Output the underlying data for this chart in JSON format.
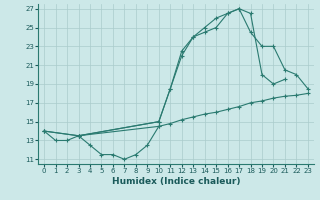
{
  "xlabel": "Humidex (Indice chaleur)",
  "bg_color": "#cce8e8",
  "grid_color": "#aacccc",
  "line_color": "#2a7a70",
  "xlim": [
    -0.5,
    23.5
  ],
  "ylim": [
    10.5,
    27.5
  ],
  "xticks": [
    0,
    1,
    2,
    3,
    4,
    5,
    6,
    7,
    8,
    9,
    10,
    11,
    12,
    13,
    14,
    15,
    16,
    17,
    18,
    19,
    20,
    21,
    22,
    23
  ],
  "yticks": [
    11,
    13,
    15,
    17,
    19,
    21,
    23,
    25,
    27
  ],
  "line1_x": [
    0,
    1,
    2,
    3,
    10,
    11,
    12,
    13,
    14,
    15,
    16,
    17,
    18,
    19,
    20,
    21
  ],
  "line1_y": [
    14,
    13,
    13,
    13.5,
    15,
    18.5,
    22,
    24,
    25.0,
    26.0,
    26.5,
    27.0,
    26.5,
    20,
    19,
    19.5
  ],
  "line2_x": [
    0,
    3,
    10,
    11,
    12,
    13,
    14,
    15,
    16,
    17,
    18,
    19,
    20,
    21,
    22,
    23
  ],
  "line2_y": [
    14,
    13.5,
    15,
    18.5,
    22.5,
    24.0,
    24.5,
    25.0,
    26.5,
    27.0,
    24.5,
    23.0,
    23.0,
    20.5,
    20.0,
    18.5
  ],
  "line3_x": [
    0,
    3,
    10,
    11,
    12,
    13,
    14,
    15,
    16,
    17,
    18,
    19,
    20,
    21,
    22,
    23
  ],
  "line3_y": [
    14,
    13.5,
    14.5,
    14.8,
    15.2,
    15.5,
    15.8,
    16.0,
    16.3,
    16.6,
    17.0,
    17.2,
    17.5,
    17.7,
    17.8,
    18.0
  ],
  "line4_x": [
    3,
    4,
    5,
    6,
    7,
    8,
    9,
    10
  ],
  "line4_y": [
    13.5,
    12.5,
    11.5,
    11.5,
    11.0,
    11.5,
    12.5,
    14.5
  ]
}
